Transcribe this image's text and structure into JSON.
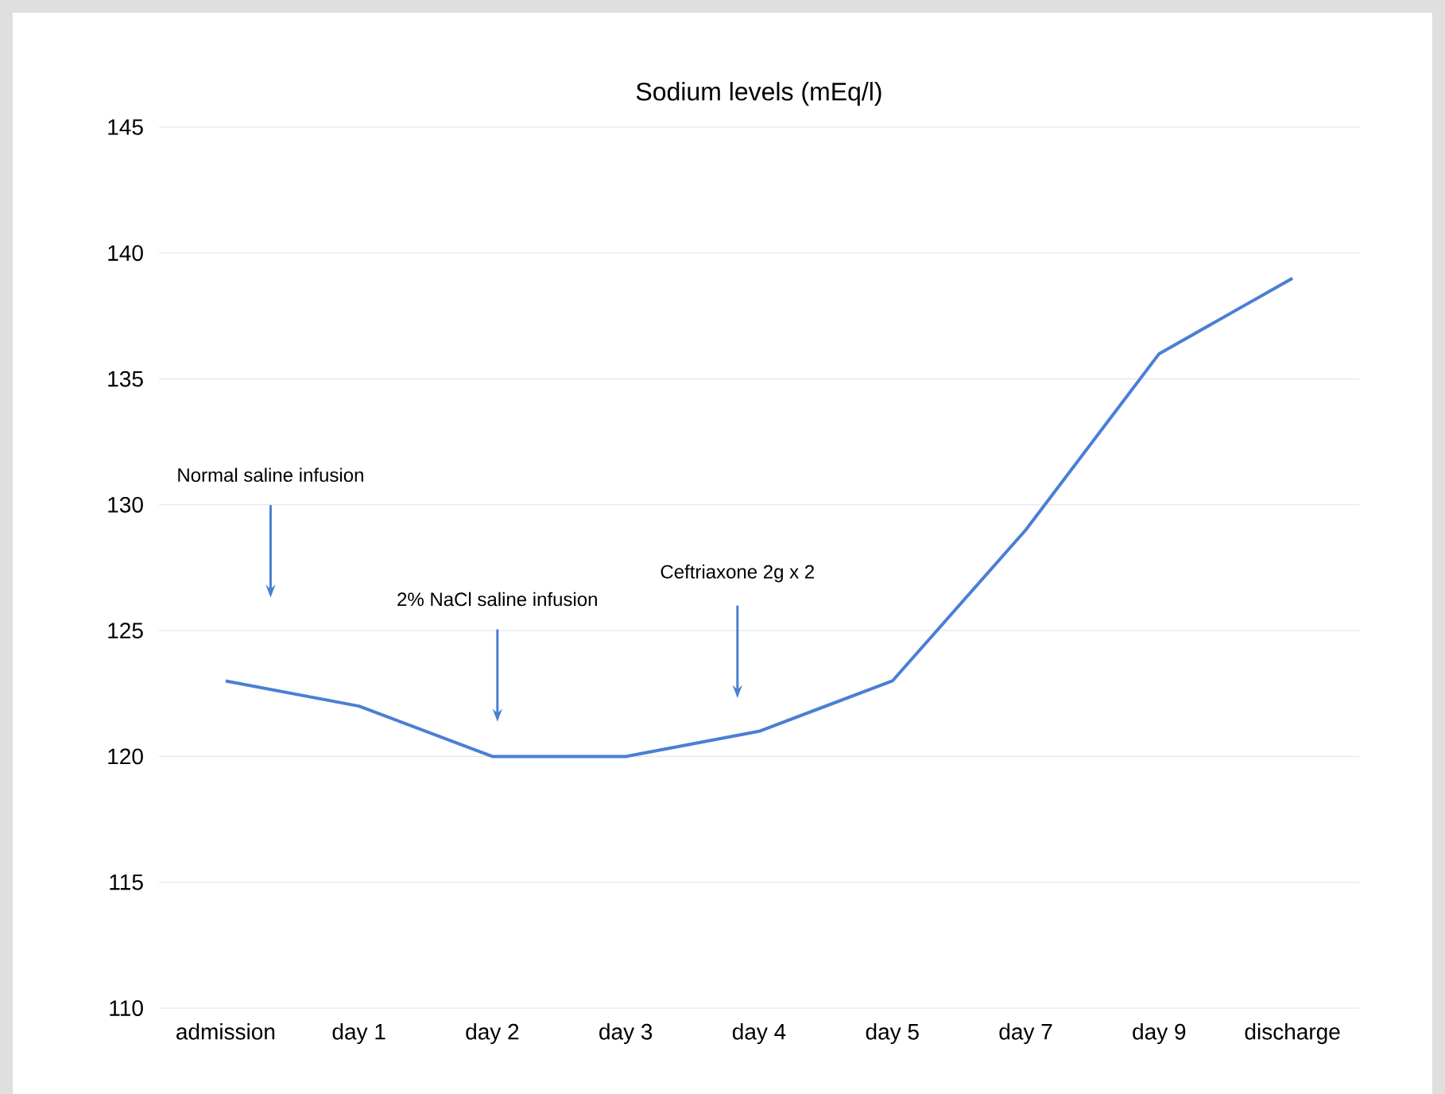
{
  "chart_data": {
    "type": "line",
    "title": "Sodium levels (mEq/l)",
    "categories": [
      "admission",
      "day 1",
      "day 2",
      "day 3",
      "day 4",
      "day 5",
      "day 7",
      "day 9",
      "discharge"
    ],
    "series": [
      {
        "color": "#4a7fd4",
        "values": [
          123,
          122,
          120,
          120,
          121,
          123,
          129,
          136,
          139
        ]
      }
    ],
    "ylim": [
      110,
      145
    ],
    "yticks": [
      110,
      115,
      120,
      125,
      130,
      135,
      140,
      145
    ],
    "grid": "y",
    "marker": "none",
    "line_style": "solid",
    "annotations": [
      "Normal saline infusion",
      "2% NaCl saline infusion",
      "Ceftriaxone 2g x 2"
    ]
  }
}
